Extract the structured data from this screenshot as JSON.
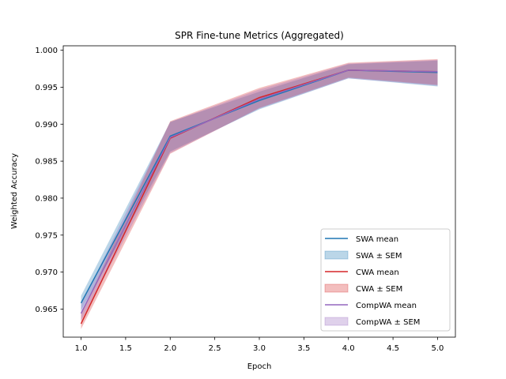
{
  "chart_data": {
    "type": "line",
    "title": "SPR Fine-tune Metrics (Aggregated)",
    "xlabel": "Epoch",
    "ylabel": "Weighted Accuracy",
    "x": [
      1,
      2,
      3,
      4,
      5
    ],
    "xlim": [
      0.8,
      5.2
    ],
    "ylim": [
      0.9612,
      1.0006
    ],
    "xticks": [
      "1.0",
      "1.5",
      "2.0",
      "2.5",
      "3.0",
      "3.5",
      "4.0",
      "4.5",
      "5.0"
    ],
    "xtick_values": [
      1.0,
      1.5,
      2.0,
      2.5,
      3.0,
      3.5,
      4.0,
      4.5,
      5.0
    ],
    "yticks": [
      "0.965",
      "0.970",
      "0.975",
      "0.980",
      "0.985",
      "0.990",
      "0.995",
      "1.000"
    ],
    "ytick_values": [
      0.965,
      0.97,
      0.975,
      0.98,
      0.985,
      0.99,
      0.995,
      1.0
    ],
    "grid": false,
    "legend_position": "lower-right",
    "series": [
      {
        "name": "SWA mean",
        "band_name": "SWA ± SEM",
        "color": "#1f77b4",
        "values": [
          0.9658,
          0.9884,
          0.9932,
          0.9973,
          0.997
        ],
        "lower": [
          0.9648,
          0.9863,
          0.992,
          0.9962,
          0.9951
        ],
        "upper": [
          0.9668,
          0.9903,
          0.9944,
          0.9981,
          0.9986
        ]
      },
      {
        "name": "CWA mean",
        "band_name": "CWA ± SEM",
        "color": "#d62728",
        "values": [
          0.963,
          0.9881,
          0.9936,
          0.9973,
          0.9971
        ],
        "lower": [
          0.9623,
          0.986,
          0.9922,
          0.9963,
          0.9953
        ],
        "upper": [
          0.9643,
          0.9904,
          0.9949,
          0.9983,
          0.9988
        ]
      },
      {
        "name": "CompWA mean",
        "band_name": "CompWA ± SEM",
        "color": "#9467bd",
        "values": [
          0.9644,
          0.9882,
          0.9934,
          0.9973,
          0.9971
        ],
        "lower": [
          0.9634,
          0.9861,
          0.9921,
          0.9962,
          0.9952
        ],
        "upper": [
          0.9656,
          0.9903,
          0.9947,
          0.9982,
          0.9987
        ]
      }
    ]
  }
}
